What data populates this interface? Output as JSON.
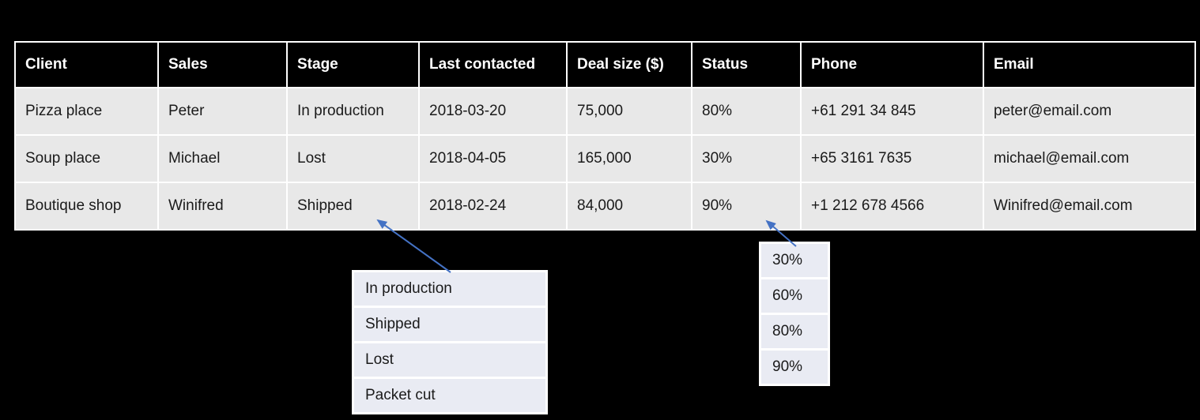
{
  "table": {
    "columns": [
      "Client",
      "Sales",
      "Stage",
      "Last contacted",
      "Deal size ($)",
      "Status",
      "Phone",
      "Email"
    ],
    "rows": [
      [
        "Pizza place",
        "Peter",
        "In production",
        "2018-03-20",
        "75,000",
        "80%",
        "+61 291 34 845",
        "peter@email.com"
      ],
      [
        "Soup place",
        "Michael",
        "Lost",
        "2018-04-05",
        "165,000",
        "30%",
        "+65 3161 7635",
        "michael@email.com"
      ],
      [
        "Boutique shop",
        "Winifred",
        "Shipped",
        "2018-02-24",
        "84,000",
        "90%",
        "+1 212 678 4566",
        "Winifred@email.com"
      ]
    ]
  },
  "stage_dropdown": {
    "options": [
      "In production",
      "Shipped",
      "Lost",
      "Packet cut"
    ],
    "points_to": "Stage cell of Boutique shop row"
  },
  "status_dropdown": {
    "options": [
      "30%",
      "60%",
      "80%",
      "90%"
    ],
    "points_to": "Status cell of Boutique shop row"
  },
  "colors": {
    "canvas_bg": "#000000",
    "header_bg": "#000000",
    "header_text": "#ffffff",
    "row_bg": "#e8e8e8",
    "grid": "#ffffff",
    "dropdown_bg": "#e9ebf3",
    "arrow": "#4472c4"
  }
}
